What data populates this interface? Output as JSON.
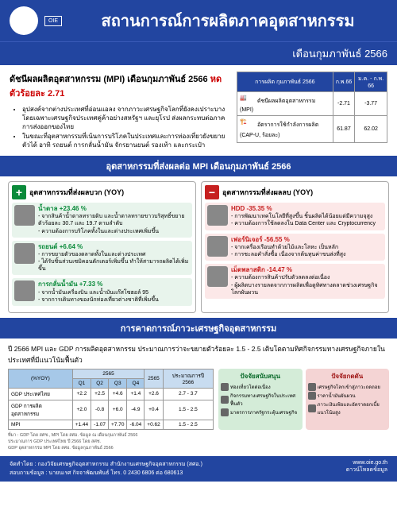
{
  "header": {
    "title": "สถานการณ์การผลิตภาคอุตสาหกรรม",
    "subtitle": "เดือนกุมภาพันธ์ 2566",
    "bg_color": "#2245a0"
  },
  "mpi": {
    "title_prefix": "ดัชนีผลผลิตอุตสาหกรรม (MPI) เดือนกุมภาพันธ์ 2566 ",
    "title_red": "หดตัวร้อยละ 2.71",
    "bullets": [
      "อุปสงค์จากต่างประเทศที่อ่อนแอลง จากภาวะเศรษฐกิจโลกที่ยังคงเปราะบาง โดยเฉพาะเศรษฐกิจประเทศคู่ค้าอย่างสหรัฐฯ และยุโรป ส่งผลกระทบต่อภาคการส่งออกของไทย",
      "ในขณะที่อุตสาหกรรมที่เน้นการบริโภคในประเทศและการท่องเที่ยวยังขยายตัวได้ อาทิ รถยนต์ การกลั่นน้ำมัน จักรยานยนต์ รองเท้า และกระเป๋า"
    ],
    "table": {
      "header": [
        "การผลิต กุมภาพันธ์ 2566",
        "ก.พ.66",
        "ม.ค. - ก.พ. 66"
      ],
      "rows": [
        {
          "label": "ดัชนีผลผลิตอุตสาหกรรม (MPI)",
          "v1": "-2.71",
          "v2": "-3.77"
        },
        {
          "label": "อัตราการใช้กำลังการผลิต (CAP-U, ร้อยละ)",
          "v1": "61.87",
          "v2": "62.02"
        }
      ]
    }
  },
  "band_title": "อุตสาหกรรมที่ส่งผลต่อ MPI เดือนกุมภาพันธ์ 2566",
  "positive": {
    "header": "อุตสาหกรรมที่ส่งผลบวก (YOY)",
    "items": [
      {
        "name": "น้ำตาล",
        "pct": "+23.46 %",
        "desc": "- จากสินค้าน้ำตาลทรายดิบ และน้ำตาลทรายขาวบริสุทธิ์ขยายตัวร้อยละ 30.7 และ 19.7 ตามลำดับ\n- ความต้องการบริโภคทั้งในและต่างประเทศเพิ่มขึ้น"
      },
      {
        "name": "รถยนต์",
        "pct": "+6.64 %",
        "desc": "- การขยายตัวของตลาดทั้งในและต่างประเทศ\n- ได้รับชิ้นส่วนเซมิคอนดักเตอร์เพิ่มขึ้น ทำให้สามารถผลิตได้เพิ่มขึ้น"
      },
      {
        "name": "การกลั่นน้ำมัน",
        "pct": "+7.33 %",
        "desc": "- จากน้ำมันเครื่องบิน และน้ำมันแก๊สโซฮอล์ 95\n- จากการเดินทางของนักท่องเที่ยวต่างชาติที่เพิ่มขึ้น"
      }
    ]
  },
  "negative": {
    "header": "อุตสาหกรรมที่ส่งผลลบ (YOY)",
    "items": [
      {
        "name": "HDD",
        "pct": "-35.35 %",
        "desc": "- การพัฒนาเทคโนโลยีที่สูงขึ้น ชิ้นผลิตได้น้อยแต่มีความจุสูง\n- ความต้องการใช้ลดลงใน Data Center และ Cryptocurrency"
      },
      {
        "name": "เฟอร์นิเจอร์",
        "pct": "-56.55 %",
        "desc": "- จากเครื่องเรือนทำด้วยไม้และโลหะ เป็นหลัก\n- การชะลอคำสั่งซื้อ เนื่องจากต้นทุนค่าขนส่งที่สูง"
      },
      {
        "name": "เม็ดพลาสติก",
        "pct": "-14.47 %",
        "desc": "- ความต้องการสินค้าปรับตัวลดลงต่อเนื่อง\n- ผู้ผลิตบางรายลดจากการผลิตเพื่อดูทิศทางตลาดช่วงเศรษฐกิจโลกผันผวน"
      }
    ]
  },
  "forecast": {
    "band": "การคาดการณ์ภาวะเศรษฐกิจอุตสาหกรรม",
    "para": "ปี 2566 MPI และ GDP การผลิตอุตสาหกรรม ประมาณการว่าจะขยายตัวร้อยละ 1.5 - 2.5 เติบโตตามทิศกิจกรรมทางเศรษฐกิจภายในประเทศที่มีแนวโน้มฟื้นตัว",
    "table": {
      "head1": "(%YOY)",
      "yr1": "2565",
      "yr2": "2565",
      "yr3": "ประมาณการปี 2566",
      "q": [
        "Q1",
        "Q2",
        "Q3",
        "Q4"
      ],
      "rows": [
        {
          "label": "GDP ประเทศไทย",
          "q1": "+2.2",
          "q2": "+2.5",
          "q3": "+4.6",
          "q4": "+1.4",
          "y": "+2.6",
          "f": "2.7 - 3.7"
        },
        {
          "label": "GDP การผลิตอุตสาหกรรม",
          "q1": "+2.0",
          "q2": "-0.8",
          "q3": "+6.0",
          "q4": "-4.9",
          "y": "+0.4",
          "f": "1.5 - 2.5"
        },
        {
          "label": "MPI",
          "q1": "+1.44",
          "q2": "-1.07",
          "q3": "+7.70",
          "q4": "-6.04",
          "y": "+0.62",
          "f": "1.5 - 2.5"
        }
      ]
    },
    "note": "ที่มา : GDP โดย สศช., MPI โดย สศอ. ข้อมูล ณ เดือนกุมภาพันธ์ 2566\nประมาณการ GDP ประเทศไทย ปี 2566 โดย สศช.\nGDP อุตสาหกรรม MPI โดย สศอ. ข้อมูลกุมภาพันธ์ 2566",
    "plus_box": {
      "title": "ปัจจัยสนับสนุน",
      "items": [
        "ท่องเที่ยวโตต่อเนื่อง",
        "กิจกรรมทางเศรษฐกิจในประเทศฟื้นตัว",
        "มาตรการภาครัฐกระตุ้นเศรษฐกิจ"
      ]
    },
    "minus_box": {
      "title": "ปัจจัยกดดัน",
      "items": [
        "เศรษฐกิจโลกเข้าสู่ภาวะถดถอย",
        "ราคาน้ำมันผันผวน",
        "ภาวะเงินเฟ้อและอัตราดอกเบี้ยแนวโน้มสูง"
      ]
    }
  },
  "footer": {
    "left": "จัดทำโดย : กองวิจัยเศรษฐกิจอุตสาหกรรม   สำนักงานเศรษฐกิจอุตสาหกรรม (สศอ.)\nสอบถามข้อมูล : นายนเรศ กิจจาพัฒนพันธ์  โทร. 0 2430 6806 ต่อ 680613",
    "right_url": "www.oie.go.th",
    "right_link": "ดาวน์โหลดข้อมูล"
  }
}
